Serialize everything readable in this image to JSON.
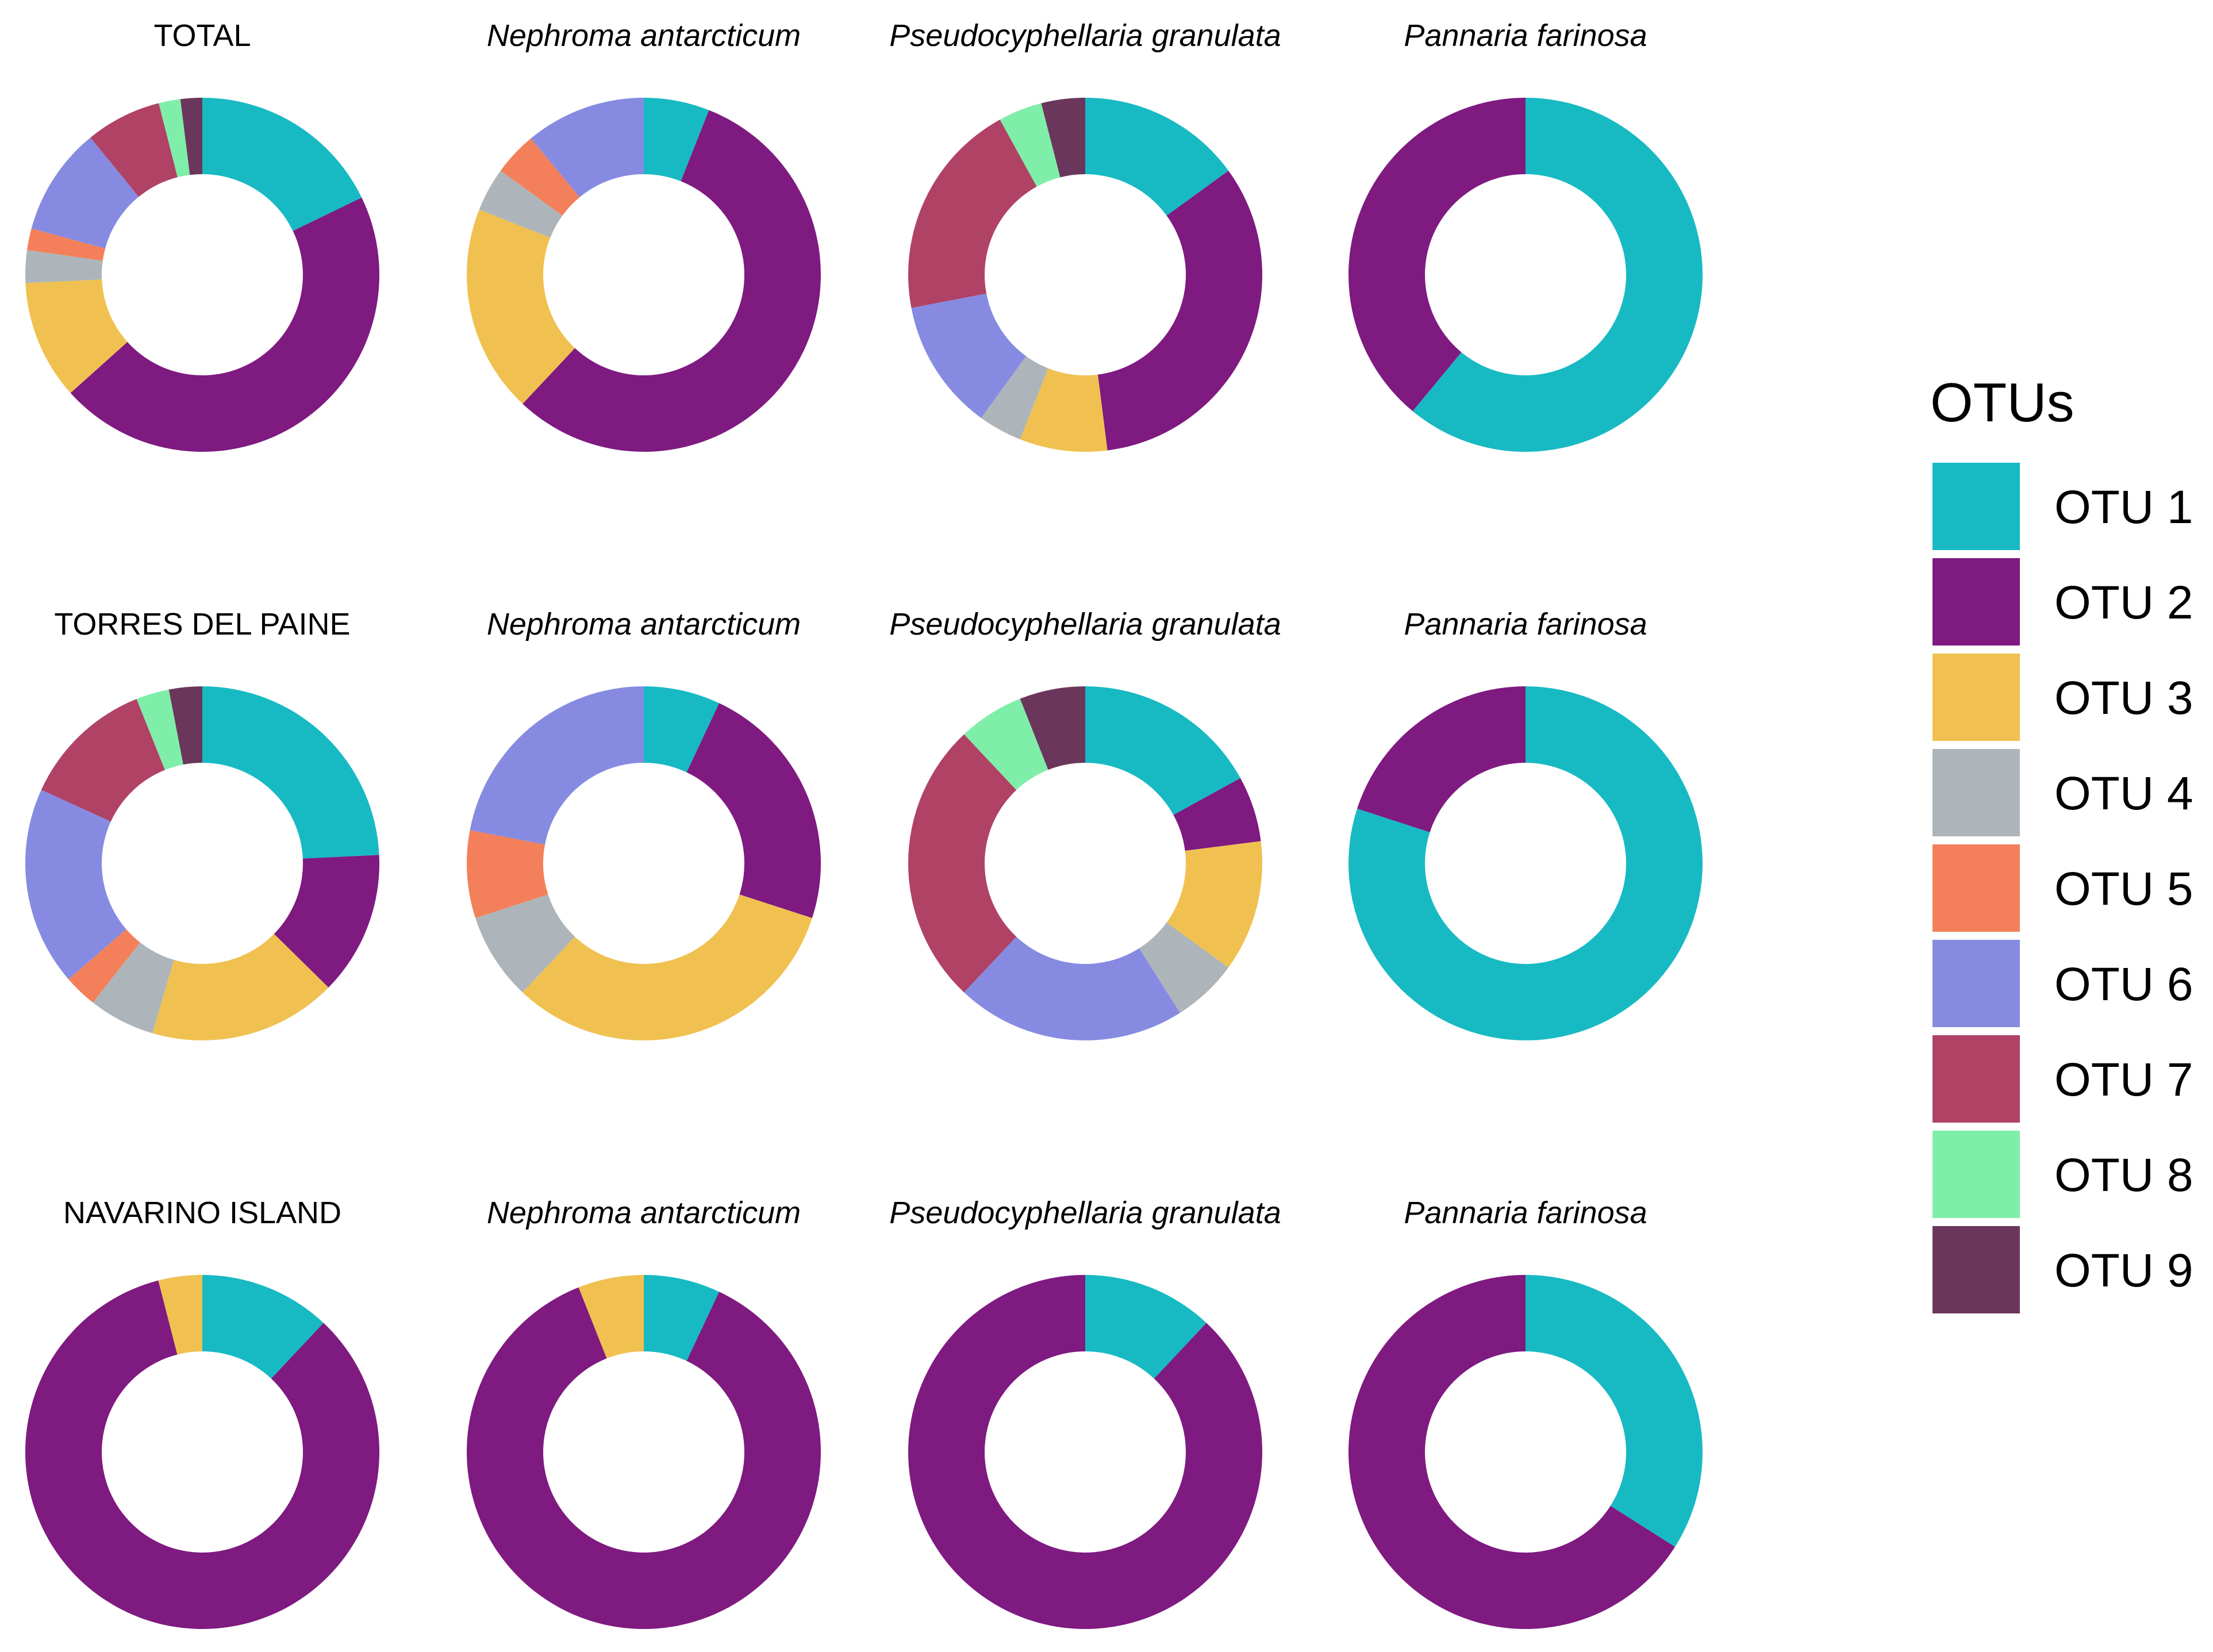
{
  "chart_data": {
    "type": "pie",
    "style": "donut",
    "legend": {
      "title": "OTUs",
      "entries": [
        {
          "key": "OTU1",
          "label": "OTU 1",
          "color": "#17BAC3"
        },
        {
          "key": "OTU2",
          "label": "OTU 2",
          "color": "#7E1A80"
        },
        {
          "key": "OTU3",
          "label": "OTU 3",
          "color": "#F0C150"
        },
        {
          "key": "OTU4",
          "label": "OTU 4",
          "color": "#ADB5BA"
        },
        {
          "key": "OTU5",
          "label": "OTU 5",
          "color": "#F3805A"
        },
        {
          "key": "OTU6",
          "label": "OTU 6",
          "color": "#868BE1"
        },
        {
          "key": "OTU7",
          "label": "OTU 7",
          "color": "#B04265"
        },
        {
          "key": "OTU8",
          "label": "OTU 8",
          "color": "#7FEEA9"
        },
        {
          "key": "OTU9",
          "label": "OTU 9",
          "color": "#6B365C"
        }
      ]
    },
    "rows": [
      {
        "panels": [
          {
            "title": "TOTAL",
            "italic": false,
            "values": {
              "OTU1": 18,
              "OTU2": 46,
              "OTU3": 11,
              "OTU4": 3,
              "OTU5": 2,
              "OTU6": 10,
              "OTU7": 7,
              "OTU8": 2,
              "OTU9": 2
            }
          },
          {
            "title": "Nephroma antarcticum",
            "italic": true,
            "values": {
              "OTU1": 6,
              "OTU2": 56,
              "OTU3": 19,
              "OTU4": 4,
              "OTU5": 4,
              "OTU6": 11,
              "OTU7": 0,
              "OTU8": 0,
              "OTU9": 0
            }
          },
          {
            "title": "Pseudocyphellaria granulata",
            "italic": true,
            "values": {
              "OTU1": 15,
              "OTU2": 33,
              "OTU3": 8,
              "OTU4": 4,
              "OTU5": 0,
              "OTU6": 12,
              "OTU7": 20,
              "OTU8": 4,
              "OTU9": 4
            }
          },
          {
            "title": "Pannaria farinosa",
            "italic": true,
            "values": {
              "OTU1": 61,
              "OTU2": 39,
              "OTU3": 0,
              "OTU4": 0,
              "OTU5": 0,
              "OTU6": 0,
              "OTU7": 0,
              "OTU8": 0,
              "OTU9": 0
            }
          }
        ]
      },
      {
        "panels": [
          {
            "title": "TORRES DEL PAINE",
            "italic": false,
            "values": {
              "OTU1": 24,
              "OTU2": 13,
              "OTU3": 17,
              "OTU4": 6,
              "OTU5": 3,
              "OTU6": 18,
              "OTU7": 12,
              "OTU8": 3,
              "OTU9": 3
            }
          },
          {
            "title": "Nephroma antarcticum",
            "italic": true,
            "values": {
              "OTU1": 7,
              "OTU2": 23,
              "OTU3": 32,
              "OTU4": 8,
              "OTU5": 8,
              "OTU6": 22,
              "OTU7": 0,
              "OTU8": 0,
              "OTU9": 0
            }
          },
          {
            "title": "Pseudocyphellaria granulata",
            "italic": true,
            "values": {
              "OTU1": 17,
              "OTU2": 6,
              "OTU3": 12,
              "OTU4": 6,
              "OTU5": 0,
              "OTU6": 21,
              "OTU7": 26,
              "OTU8": 6,
              "OTU9": 6
            }
          },
          {
            "title": "Pannaria farinosa",
            "italic": true,
            "values": {
              "OTU1": 80,
              "OTU2": 20,
              "OTU3": 0,
              "OTU4": 0,
              "OTU5": 0,
              "OTU6": 0,
              "OTU7": 0,
              "OTU8": 0,
              "OTU9": 0
            }
          }
        ]
      },
      {
        "panels": [
          {
            "title": "NAVARINO ISLAND",
            "italic": false,
            "values": {
              "OTU1": 12,
              "OTU2": 84,
              "OTU3": 4,
              "OTU4": 0,
              "OTU5": 0,
              "OTU6": 0,
              "OTU7": 0,
              "OTU8": 0,
              "OTU9": 0
            }
          },
          {
            "title": "Nephroma antarcticum",
            "italic": true,
            "values": {
              "OTU1": 7,
              "OTU2": 87,
              "OTU3": 6,
              "OTU4": 0,
              "OTU5": 0,
              "OTU6": 0,
              "OTU7": 0,
              "OTU8": 0,
              "OTU9": 0
            }
          },
          {
            "title": "Pseudocyphellaria granulata",
            "italic": true,
            "values": {
              "OTU1": 12,
              "OTU2": 88,
              "OTU3": 0,
              "OTU4": 0,
              "OTU5": 0,
              "OTU6": 0,
              "OTU7": 0,
              "OTU8": 0,
              "OTU9": 0
            }
          },
          {
            "title": "Pannaria farinosa",
            "italic": true,
            "values": {
              "OTU1": 34,
              "OTU2": 66,
              "OTU3": 0,
              "OTU4": 0,
              "OTU5": 0,
              "OTU6": 0,
              "OTU7": 0,
              "OTU8": 0,
              "OTU9": 0
            }
          }
        ]
      }
    ]
  }
}
